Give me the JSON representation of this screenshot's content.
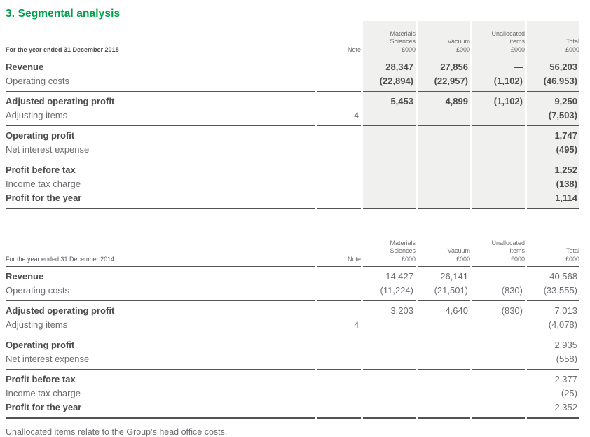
{
  "page": {
    "heading": "3. Segmental analysis",
    "footnote": "Unallocated items relate to the Group’s head office costs."
  },
  "colors": {
    "accent_green": "#00a04b",
    "highlight_bg": "#f0f1ee",
    "rule": "#55565a",
    "text_bold": "#4b4c4e",
    "text_regular": "#6b6c6f"
  },
  "table_columns": {
    "headers": [
      {
        "id": "note",
        "lines": [
          "Note"
        ]
      },
      {
        "id": "materials-sciences",
        "lines": [
          "Materials",
          "Sciences",
          "£000"
        ]
      },
      {
        "id": "vacuum",
        "lines": [
          "Vacuum",
          "£000"
        ]
      },
      {
        "id": "unallocated-items",
        "lines": [
          "Unallocated",
          "items",
          "£000"
        ]
      },
      {
        "id": "total",
        "lines": [
          "Total",
          "£000"
        ]
      }
    ]
  },
  "tables": [
    {
      "year": "2015",
      "caption": "For the year ended 31 December 2015",
      "caption_bold": true,
      "values_bold": true,
      "highlighted": true,
      "sections": [
        {
          "rows": [
            {
              "label": "Revenue",
              "bold": true,
              "note": "",
              "values": [
                "28,347",
                "27,856",
                "—",
                "56,203"
              ]
            },
            {
              "label": "Operating costs",
              "bold": false,
              "note": "",
              "values": [
                "(22,894)",
                "(22,957)",
                "(1,102)",
                "(46,953)"
              ]
            }
          ]
        },
        {
          "rows": [
            {
              "label": "Adjusted operating profit",
              "bold": true,
              "note": "",
              "values": [
                "5,453",
                "4,899",
                "(1,102)",
                "9,250"
              ]
            },
            {
              "label": "Adjusting items",
              "bold": false,
              "note": "4",
              "values": [
                "",
                "",
                "",
                "(7,503)"
              ]
            }
          ]
        },
        {
          "rows": [
            {
              "label": "Operating profit",
              "bold": true,
              "note": "",
              "values": [
                "",
                "",
                "",
                "1,747"
              ]
            },
            {
              "label": "Net interest expense",
              "bold": false,
              "note": "",
              "values": [
                "",
                "",
                "",
                "(495)"
              ]
            }
          ]
        },
        {
          "rows": [
            {
              "label": "Profit before tax",
              "bold": true,
              "note": "",
              "values": [
                "",
                "",
                "",
                "1,252"
              ]
            },
            {
              "label": "Income tax charge",
              "bold": false,
              "note": "",
              "values": [
                "",
                "",
                "",
                "(138)"
              ]
            },
            {
              "label": "Profit for the year",
              "bold": true,
              "note": "",
              "values": [
                "",
                "",
                "",
                "1,114"
              ]
            }
          ]
        }
      ]
    },
    {
      "year": "2014",
      "caption": "For the year ended 31 December 2014",
      "caption_bold": false,
      "values_bold": false,
      "highlighted": false,
      "sections": [
        {
          "rows": [
            {
              "label": "Revenue",
              "bold": true,
              "note": "",
              "values": [
                "14,427",
                "26,141",
                "—",
                "40,568"
              ]
            },
            {
              "label": "Operating costs",
              "bold": false,
              "note": "",
              "values": [
                "(11,224)",
                "(21,501)",
                "(830)",
                "(33,555)"
              ]
            }
          ]
        },
        {
          "rows": [
            {
              "label": "Adjusted operating profit",
              "bold": true,
              "note": "",
              "values": [
                "3,203",
                "4,640",
                "(830)",
                "7,013"
              ]
            },
            {
              "label": "Adjusting items",
              "bold": false,
              "note": "4",
              "values": [
                "",
                "",
                "",
                "(4,078)"
              ]
            }
          ]
        },
        {
          "rows": [
            {
              "label": "Operating profit",
              "bold": true,
              "note": "",
              "values": [
                "",
                "",
                "",
                "2,935"
              ]
            },
            {
              "label": "Net interest expense",
              "bold": false,
              "note": "",
              "values": [
                "",
                "",
                "",
                "(558)"
              ]
            }
          ]
        },
        {
          "rows": [
            {
              "label": "Profit before tax",
              "bold": true,
              "note": "",
              "values": [
                "",
                "",
                "",
                "2,377"
              ]
            },
            {
              "label": "Income tax charge",
              "bold": false,
              "note": "",
              "values": [
                "",
                "",
                "",
                "(25)"
              ]
            },
            {
              "label": "Profit for the year",
              "bold": true,
              "note": "",
              "values": [
                "",
                "",
                "",
                "2,352"
              ]
            }
          ]
        }
      ]
    }
  ]
}
